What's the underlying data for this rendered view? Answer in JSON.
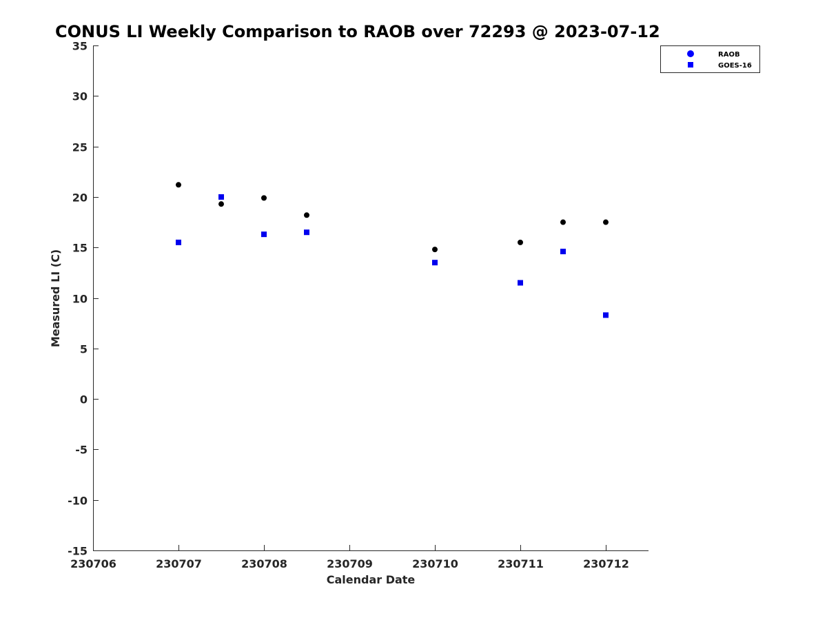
{
  "chart_data": {
    "type": "scatter",
    "title": "CONUS LI Weekly Comparison to RAOB over 72293 @ 2023-07-12",
    "xlabel": "Calendar Date",
    "ylabel": "Measured LI (C)",
    "xlim": [
      230706,
      230712.5
    ],
    "ylim": [
      -15,
      35
    ],
    "xticks": [
      230706,
      230707,
      230708,
      230709,
      230710,
      230711,
      230712
    ],
    "xtick_labels": [
      "230706",
      "230707",
      "230708",
      "230709",
      "230710",
      "230711",
      "230712"
    ],
    "yticks": [
      -15,
      -10,
      -5,
      0,
      5,
      10,
      15,
      20,
      25,
      30,
      35
    ],
    "ytick_labels": [
      "-15",
      "-10",
      "-5",
      "0",
      "5",
      "10",
      "15",
      "20",
      "25",
      "30",
      "35"
    ],
    "grid": false,
    "legend_position": "top-right",
    "series": [
      {
        "name": "RAOB",
        "legend_label": "RAOB",
        "marker": "circle",
        "plot_color": "#000000",
        "legend_color": "#0000ff",
        "x": [
          230707,
          230707.5,
          230708,
          230708.5,
          230710,
          230711,
          230711.5,
          230712
        ],
        "y": [
          21.2,
          19.3,
          19.9,
          18.2,
          14.8,
          15.5,
          17.5,
          17.5
        ]
      },
      {
        "name": "GOES-16",
        "legend_label": "GOES-16",
        "marker": "square",
        "plot_color": "#0000ee",
        "legend_color": "#0000ff",
        "x": [
          230707,
          230707.5,
          230708,
          230708.5,
          230710,
          230711,
          230711.5,
          230712
        ],
        "y": [
          15.5,
          20.0,
          16.3,
          16.5,
          13.5,
          11.5,
          14.6,
          8.3
        ]
      }
    ]
  }
}
